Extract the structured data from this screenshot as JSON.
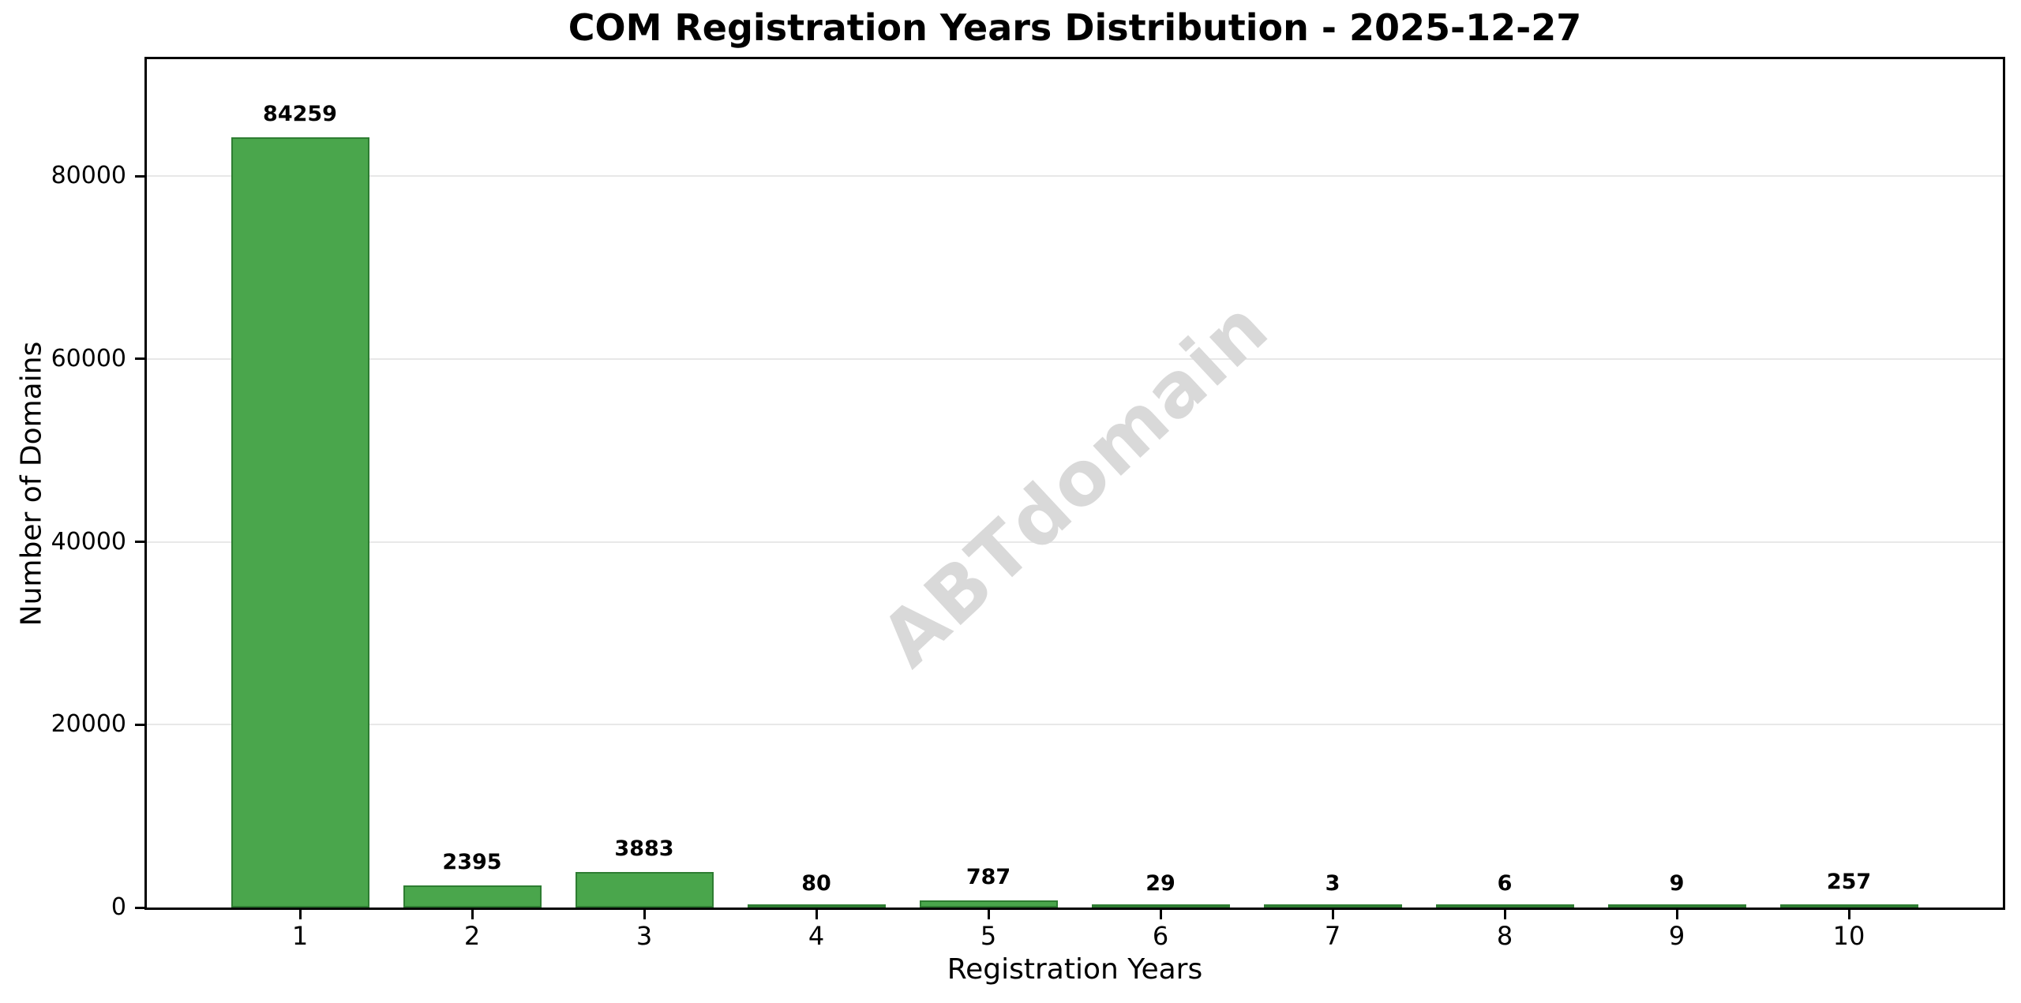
{
  "chart_data": {
    "type": "bar",
    "title": "COM Registration Years Distribution - 2025-12-27",
    "xlabel": "Registration Years",
    "ylabel": "Number of Domains",
    "categories": [
      "1",
      "2",
      "3",
      "4",
      "5",
      "6",
      "7",
      "8",
      "9",
      "10"
    ],
    "values": [
      84259,
      2395,
      3883,
      80,
      787,
      29,
      3,
      6,
      9,
      257
    ],
    "bar_value_labels": [
      "84259",
      "2395",
      "3883",
      "80",
      "787",
      "29",
      "3",
      "6",
      "9",
      "257"
    ],
    "yticks": [
      0,
      20000,
      40000,
      60000,
      80000
    ],
    "ytick_labels": [
      "0",
      "20000",
      "40000",
      "60000",
      "80000"
    ],
    "ylim": [
      0,
      93000
    ],
    "grid": "horizontal-only",
    "legend": "none",
    "watermark": "ABTdomain",
    "colors": {
      "bar_fill": "#4aa64c",
      "bar_edge": "#2e7d32",
      "gridline": "#e8e8e8",
      "axis": "#000000",
      "watermark": "#d9d9d9",
      "background": "#ffffff",
      "text": "#000000"
    }
  }
}
